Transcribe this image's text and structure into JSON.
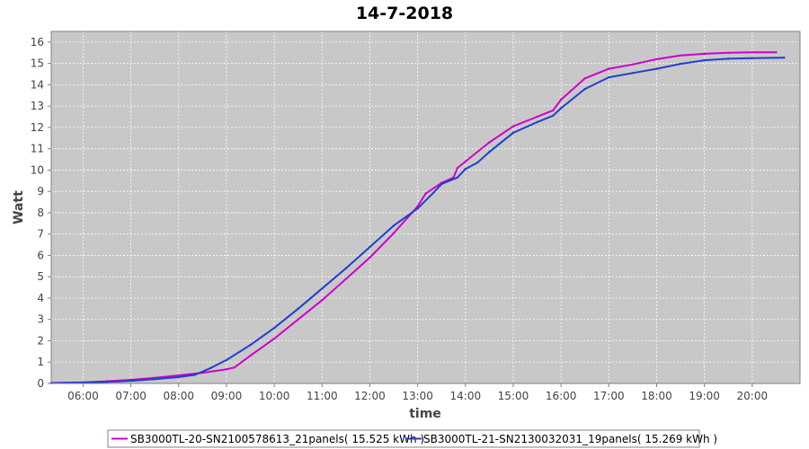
{
  "chart_data": {
    "type": "line",
    "title": "14-7-2018",
    "xlabel": "time",
    "ylabel": "Watt",
    "ylim": [
      0,
      16.5
    ],
    "xlim": [
      "05:20",
      "21:00"
    ],
    "yticks": [
      0,
      1,
      2,
      3,
      4,
      5,
      6,
      7,
      8,
      9,
      10,
      11,
      12,
      13,
      14,
      15,
      16
    ],
    "xticks": [
      "06:00",
      "07:00",
      "08:00",
      "09:00",
      "10:00",
      "11:00",
      "12:00",
      "13:00",
      "14:00",
      "15:00",
      "16:00",
      "17:00",
      "18:00",
      "19:00",
      "20:00"
    ],
    "grid": true,
    "legend_position": "bottom",
    "colors": {
      "plot_bg": "#c8c8c8",
      "grid": "#ffffff"
    },
    "series": [
      {
        "name": "SB3000TL-20-SN2100578613_21panels( 15.525 kWh )",
        "color": "#cc00cc",
        "x": [
          "05:20",
          "06:00",
          "06:30",
          "07:00",
          "07:30",
          "08:00",
          "08:30",
          "09:00",
          "09:10",
          "09:30",
          "10:00",
          "10:30",
          "11:00",
          "11:30",
          "12:00",
          "12:30",
          "13:00",
          "13:10",
          "13:30",
          "13:45",
          "13:50",
          "14:00",
          "14:30",
          "15:00",
          "15:30",
          "15:50",
          "16:00",
          "16:30",
          "17:00",
          "17:30",
          "18:00",
          "18:30",
          "19:00",
          "19:30",
          "20:00",
          "20:30"
        ],
        "values": [
          0.02,
          0.05,
          0.1,
          0.17,
          0.26,
          0.38,
          0.5,
          0.66,
          0.75,
          1.3,
          2.1,
          3.0,
          3.9,
          4.9,
          5.9,
          7.05,
          8.3,
          8.9,
          9.4,
          9.65,
          10.1,
          10.4,
          11.3,
          12.05,
          12.5,
          12.8,
          13.3,
          14.3,
          14.75,
          14.95,
          15.2,
          15.37,
          15.45,
          15.5,
          15.52,
          15.525
        ]
      },
      {
        "name": "SB3000TL-21-SN2130032031_19panels( 15.269 kWh )",
        "color": "#1f3fcf",
        "x": [
          "05:20",
          "06:00",
          "06:30",
          "07:00",
          "07:30",
          "08:00",
          "08:20",
          "08:40",
          "09:00",
          "09:30",
          "10:00",
          "10:30",
          "11:00",
          "11:30",
          "12:00",
          "12:30",
          "13:00",
          "13:20",
          "13:30",
          "13:50",
          "14:00",
          "14:15",
          "14:30",
          "15:00",
          "15:30",
          "15:50",
          "16:00",
          "16:30",
          "17:00",
          "17:30",
          "18:00",
          "18:30",
          "19:00",
          "19:30",
          "20:00",
          "20:40"
        ],
        "values": [
          0.02,
          0.04,
          0.07,
          0.12,
          0.2,
          0.3,
          0.4,
          0.72,
          1.1,
          1.8,
          2.6,
          3.5,
          4.45,
          5.4,
          6.4,
          7.4,
          8.2,
          8.95,
          9.35,
          9.65,
          10.05,
          10.35,
          10.85,
          11.75,
          12.25,
          12.55,
          12.9,
          13.8,
          14.35,
          14.55,
          14.75,
          14.98,
          15.15,
          15.22,
          15.25,
          15.269
        ]
      }
    ]
  }
}
